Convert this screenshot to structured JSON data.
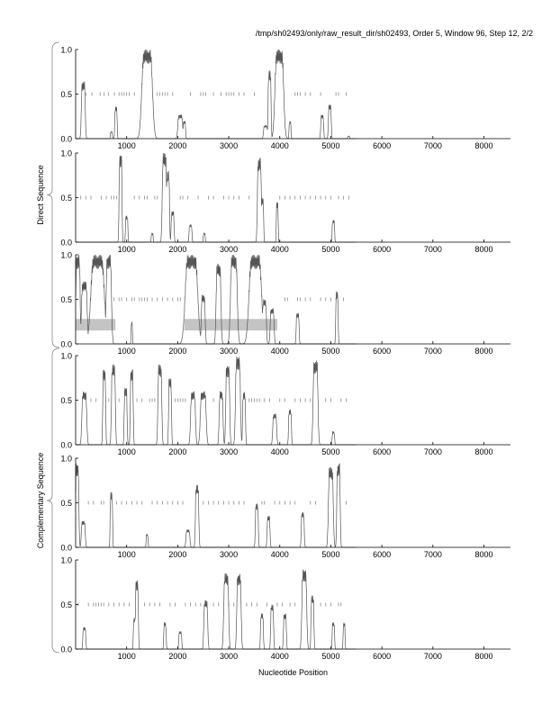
{
  "chart_data": {
    "type": "line",
    "title": "/tmp/sh02493/only/raw_result_dir/sh02493, Order 5, Window 96, Step 12, 2/2",
    "xlabel": "Nucleotide Position",
    "xlim": [
      0,
      8520
    ],
    "ylim": [
      0,
      1
    ],
    "xticks": [
      1000,
      2000,
      3000,
      4000,
      5000,
      6000,
      7000,
      8000
    ],
    "yticks": [
      "0.0",
      "0.5",
      "1.0"
    ],
    "groups": [
      {
        "label": "Direct Sequence",
        "panels": [
          0,
          1,
          2
        ]
      },
      {
        "label": "Complementary Sequence",
        "panels": [
          3,
          4,
          5
        ]
      }
    ],
    "panels": [
      {
        "peaks": [
          [
            150,
            0.64,
            40
          ],
          [
            700,
            0.08,
            20
          ],
          [
            790,
            0.36,
            25
          ],
          [
            1400,
            1.0,
            110
          ],
          [
            1480,
            0.6,
            30
          ],
          [
            2050,
            0.27,
            50
          ],
          [
            2130,
            0.2,
            25
          ],
          [
            3720,
            0.15,
            40
          ],
          [
            3800,
            0.77,
            30
          ],
          [
            3990,
            1.0,
            90
          ],
          [
            4200,
            0.2,
            20
          ],
          [
            4830,
            0.27,
            30
          ],
          [
            4980,
            0.38,
            30
          ],
          [
            5350,
            0.03,
            20
          ]
        ],
        "ticks": [
          200,
          320,
          480,
          560,
          640,
          760,
          850,
          900,
          950,
          1000,
          1050,
          1150,
          1600,
          1650,
          1700,
          1750,
          1800,
          1900,
          2250,
          2450,
          2500,
          2550,
          2700,
          2850,
          2950,
          3000,
          3050,
          3100,
          3200,
          3300,
          3500,
          4300,
          4350,
          4400,
          4500,
          4600,
          4800,
          5100,
          5150,
          5300
        ],
        "boxes": []
      },
      {
        "peaks": [
          [
            880,
            1.0,
            30
          ],
          [
            1000,
            0.3,
            25
          ],
          [
            1500,
            0.1,
            20
          ],
          [
            1740,
            1.0,
            45
          ],
          [
            1810,
            0.8,
            30
          ],
          [
            1900,
            0.35,
            30
          ],
          [
            2250,
            0.2,
            30
          ],
          [
            2520,
            0.1,
            20
          ],
          [
            3600,
            0.95,
            40
          ],
          [
            3660,
            0.5,
            25
          ],
          [
            3950,
            0.45,
            20
          ],
          [
            5050,
            0.25,
            25
          ]
        ],
        "ticks": [
          100,
          200,
          300,
          500,
          600,
          700,
          750,
          800,
          1150,
          1250,
          1350,
          1400,
          1550,
          1600,
          2050,
          2100,
          2200,
          2400,
          2600,
          2700,
          2900,
          3000,
          3100,
          3200,
          3400,
          4000,
          4100,
          4200,
          4300,
          4400,
          4500,
          4600,
          4700,
          4800,
          4900,
          5000,
          5150,
          5250,
          5350
        ],
        "boxes": []
      },
      {
        "peaks": [
          [
            45,
            1.0,
            45
          ],
          [
            170,
            0.7,
            60
          ],
          [
            430,
            1.0,
            140
          ],
          [
            650,
            1.0,
            55
          ],
          [
            1100,
            0.25,
            15
          ],
          [
            2270,
            1.0,
            130
          ],
          [
            2500,
            0.55,
            40
          ],
          [
            2800,
            0.9,
            50
          ],
          [
            3100,
            1.0,
            70
          ],
          [
            3520,
            1.0,
            130
          ],
          [
            3700,
            0.5,
            40
          ],
          [
            3850,
            0.4,
            40
          ],
          [
            4350,
            0.35,
            30
          ],
          [
            5120,
            0.6,
            25
          ]
        ],
        "ticks": [
          750,
          850,
          900,
          1000,
          1100,
          1150,
          1250,
          1300,
          1350,
          1400,
          1500,
          1600,
          1700,
          1800,
          1900,
          2000,
          2050,
          4100,
          4150,
          4350,
          4400,
          4500,
          4600,
          4800,
          4900,
          5000,
          5100,
          5250
        ],
        "boxes": [
          [
            0,
            780,
            0.15,
            0.28
          ],
          [
            2130,
            3950,
            0.15,
            0.28
          ]
        ]
      },
      {
        "peaks": [
          [
            170,
            0.6,
            50
          ],
          [
            560,
            0.85,
            30
          ],
          [
            740,
            0.9,
            40
          ],
          [
            980,
            0.65,
            30
          ],
          [
            1100,
            0.85,
            30
          ],
          [
            1650,
            0.9,
            40
          ],
          [
            1850,
            0.75,
            30
          ],
          [
            2300,
            0.6,
            50
          ],
          [
            2500,
            0.6,
            60
          ],
          [
            2850,
            0.6,
            40
          ],
          [
            2980,
            0.9,
            40
          ],
          [
            3180,
            1.0,
            50
          ],
          [
            3300,
            0.6,
            30
          ],
          [
            3900,
            0.35,
            40
          ],
          [
            4200,
            0.4,
            30
          ],
          [
            4700,
            0.95,
            50
          ],
          [
            5050,
            0.15,
            25
          ]
        ],
        "ticks": [
          300,
          400,
          650,
          850,
          1200,
          1300,
          1450,
          1500,
          1550,
          1950,
          2000,
          2050,
          2100,
          2150,
          2700,
          3400,
          3450,
          3500,
          3550,
          3600,
          3700,
          3800,
          4000,
          4100,
          4300,
          4400,
          4500,
          4600,
          4900,
          5000,
          5200,
          5300
        ],
        "boxes": []
      },
      {
        "peaks": [
          [
            30,
            0.95,
            35
          ],
          [
            150,
            0.3,
            40
          ],
          [
            700,
            0.62,
            25
          ],
          [
            1400,
            0.15,
            20
          ],
          [
            2200,
            0.2,
            40
          ],
          [
            2380,
            0.7,
            35
          ],
          [
            3550,
            0.5,
            30
          ],
          [
            3780,
            0.35,
            30
          ],
          [
            4450,
            0.4,
            30
          ],
          [
            5000,
            0.9,
            50
          ],
          [
            5150,
            0.95,
            35
          ]
        ],
        "ticks": [
          250,
          350,
          500,
          550,
          800,
          900,
          1000,
          1100,
          1200,
          1300,
          1500,
          1600,
          1700,
          1800,
          1900,
          2000,
          2100,
          2500,
          2600,
          2700,
          2800,
          2900,
          3000,
          3100,
          3200,
          3300,
          3650,
          3700,
          3900,
          4000,
          4100,
          4200,
          4300,
          4600,
          4700,
          5300
        ],
        "boxes": []
      },
      {
        "peaks": [
          [
            170,
            0.25,
            30
          ],
          [
            1150,
            0.35,
            20
          ],
          [
            1200,
            0.78,
            30
          ],
          [
            1750,
            0.3,
            25
          ],
          [
            2050,
            0.2,
            30
          ],
          [
            2550,
            0.55,
            40
          ],
          [
            2950,
            0.85,
            50
          ],
          [
            3200,
            0.85,
            45
          ],
          [
            3650,
            0.4,
            30
          ],
          [
            3850,
            0.5,
            30
          ],
          [
            4100,
            0.4,
            30
          ],
          [
            4480,
            0.9,
            50
          ],
          [
            4640,
            0.6,
            30
          ],
          [
            5050,
            0.3,
            25
          ],
          [
            5260,
            0.3,
            20
          ]
        ],
        "ticks": [
          50,
          250,
          350,
          400,
          450,
          500,
          550,
          650,
          750,
          850,
          950,
          1050,
          1350,
          1450,
          1550,
          1650,
          1850,
          1950,
          2150,
          2250,
          2350,
          2450,
          2700,
          2800,
          3000,
          3100,
          3350,
          3450,
          3550,
          3750,
          3950,
          4050,
          4200,
          4300,
          4800,
          4900,
          5000,
          5150,
          5200
        ],
        "boxes": []
      }
    ]
  }
}
